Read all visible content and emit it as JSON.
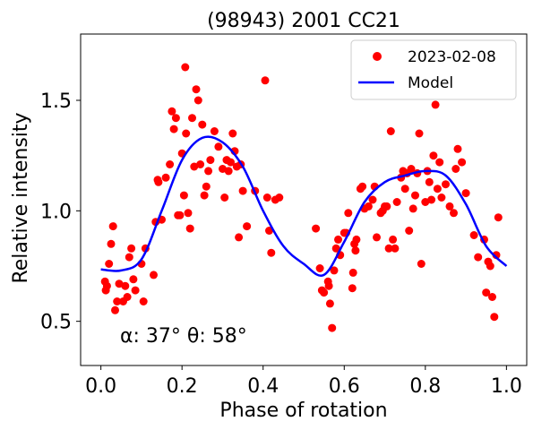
{
  "chart_data": {
    "type": "scatter",
    "title": "(98943) 2001 CC21",
    "xlabel": "Phase of rotation",
    "ylabel": "Relative intensity",
    "xlim": [
      -0.05,
      1.05
    ],
    "ylim": [
      0.3,
      1.8
    ],
    "xticks": [
      0.0,
      0.2,
      0.4,
      0.6,
      0.8,
      1.0
    ],
    "xtick_labels": [
      "0.0",
      "0.2",
      "0.4",
      "0.6",
      "0.8",
      "1.0"
    ],
    "yticks": [
      0.5,
      1.0,
      1.5
    ],
    "ytick_labels": [
      "0.5",
      "1.0",
      "1.5"
    ],
    "grid": false,
    "legend": {
      "placement": "top-right"
    },
    "annotation": "α: 37° θ: 58°",
    "series": [
      {
        "name": "2023-02-08",
        "kind": "scatter",
        "color": "#ff0000",
        "points": [
          [
            0.01,
            0.68
          ],
          [
            0.012,
            0.64
          ],
          [
            0.015,
            0.66
          ],
          [
            0.02,
            0.76
          ],
          [
            0.025,
            0.85
          ],
          [
            0.03,
            0.93
          ],
          [
            0.035,
            0.55
          ],
          [
            0.04,
            0.59
          ],
          [
            0.045,
            0.67
          ],
          [
            0.055,
            0.59
          ],
          [
            0.06,
            0.66
          ],
          [
            0.065,
            0.61
          ],
          [
            0.07,
            0.79
          ],
          [
            0.075,
            0.83
          ],
          [
            0.08,
            0.69
          ],
          [
            0.085,
            0.64
          ],
          [
            0.1,
            0.76
          ],
          [
            0.105,
            0.59
          ],
          [
            0.11,
            0.83
          ],
          [
            0.13,
            0.71
          ],
          [
            0.135,
            0.95
          ],
          [
            0.14,
            1.14
          ],
          [
            0.142,
            1.13
          ],
          [
            0.15,
            0.96
          ],
          [
            0.16,
            1.15
          ],
          [
            0.17,
            1.21
          ],
          [
            0.175,
            1.45
          ],
          [
            0.18,
            1.37
          ],
          [
            0.185,
            1.42
          ],
          [
            0.19,
            0.98
          ],
          [
            0.195,
            0.98
          ],
          [
            0.2,
            1.26
          ],
          [
            0.205,
            1.07
          ],
          [
            0.208,
            1.65
          ],
          [
            0.21,
            1.35
          ],
          [
            0.215,
            0.99
          ],
          [
            0.22,
            0.92
          ],
          [
            0.225,
            1.42
          ],
          [
            0.23,
            1.2
          ],
          [
            0.235,
            1.55
          ],
          [
            0.24,
            1.5
          ],
          [
            0.245,
            1.21
          ],
          [
            0.25,
            1.39
          ],
          [
            0.255,
            1.07
          ],
          [
            0.26,
            1.11
          ],
          [
            0.265,
            1.18
          ],
          [
            0.27,
            1.23
          ],
          [
            0.28,
            1.36
          ],
          [
            0.29,
            1.29
          ],
          [
            0.3,
            1.19
          ],
          [
            0.305,
            1.06
          ],
          [
            0.31,
            1.23
          ],
          [
            0.315,
            1.18
          ],
          [
            0.32,
            1.22
          ],
          [
            0.325,
            1.35
          ],
          [
            0.33,
            1.27
          ],
          [
            0.335,
            1.2
          ],
          [
            0.34,
            0.88
          ],
          [
            0.345,
            1.21
          ],
          [
            0.35,
            1.09
          ],
          [
            0.36,
            0.93
          ],
          [
            0.38,
            1.09
          ],
          [
            0.405,
            1.59
          ],
          [
            0.41,
            1.06
          ],
          [
            0.415,
            0.91
          ],
          [
            0.42,
            0.81
          ],
          [
            0.43,
            1.05
          ],
          [
            0.44,
            1.06
          ],
          [
            0.53,
            0.92
          ],
          [
            0.54,
            0.74
          ],
          [
            0.545,
            0.64
          ],
          [
            0.55,
            0.63
          ],
          [
            0.56,
            0.68
          ],
          [
            0.562,
            0.66
          ],
          [
            0.565,
            0.58
          ],
          [
            0.57,
            0.47
          ],
          [
            0.575,
            0.73
          ],
          [
            0.58,
            0.83
          ],
          [
            0.585,
            0.87
          ],
          [
            0.59,
            0.8
          ],
          [
            0.6,
            0.9
          ],
          [
            0.605,
            0.9
          ],
          [
            0.61,
            0.99
          ],
          [
            0.62,
            0.65
          ],
          [
            0.622,
            0.72
          ],
          [
            0.625,
            0.85
          ],
          [
            0.628,
            0.82
          ],
          [
            0.63,
            0.87
          ],
          [
            0.64,
            1.1
          ],
          [
            0.645,
            1.11
          ],
          [
            0.65,
            1.01
          ],
          [
            0.66,
            1.02
          ],
          [
            0.67,
            1.05
          ],
          [
            0.675,
            1.11
          ],
          [
            0.68,
            0.88
          ],
          [
            0.69,
            0.99
          ],
          [
            0.695,
            1.0
          ],
          [
            0.7,
            1.02
          ],
          [
            0.705,
            1.02
          ],
          [
            0.71,
            0.83
          ],
          [
            0.715,
            1.36
          ],
          [
            0.72,
            0.87
          ],
          [
            0.725,
            0.83
          ],
          [
            0.73,
            1.04
          ],
          [
            0.74,
            1.15
          ],
          [
            0.745,
            1.18
          ],
          [
            0.75,
            1.1
          ],
          [
            0.755,
            1.17
          ],
          [
            0.76,
            0.91
          ],
          [
            0.765,
            1.19
          ],
          [
            0.77,
            1.01
          ],
          [
            0.775,
            1.07
          ],
          [
            0.78,
            1.17
          ],
          [
            0.785,
            1.35
          ],
          [
            0.79,
            0.76
          ],
          [
            0.8,
            1.04
          ],
          [
            0.805,
            1.18
          ],
          [
            0.81,
            1.13
          ],
          [
            0.815,
            1.05
          ],
          [
            0.82,
            1.25
          ],
          [
            0.825,
            1.48
          ],
          [
            0.83,
            1.1
          ],
          [
            0.835,
            1.22
          ],
          [
            0.84,
            1.06
          ],
          [
            0.85,
            1.12
          ],
          [
            0.86,
            1.02
          ],
          [
            0.87,
            0.99
          ],
          [
            0.875,
            1.19
          ],
          [
            0.88,
            1.28
          ],
          [
            0.89,
            1.22
          ],
          [
            0.9,
            1.08
          ],
          [
            0.92,
            0.89
          ],
          [
            0.93,
            0.79
          ],
          [
            0.945,
            0.87
          ],
          [
            0.95,
            0.63
          ],
          [
            0.955,
            0.77
          ],
          [
            0.96,
            0.75
          ],
          [
            0.965,
            0.61
          ],
          [
            0.97,
            0.52
          ],
          [
            0.975,
            0.8
          ],
          [
            0.98,
            0.97
          ]
        ]
      },
      {
        "name": "Model",
        "kind": "line",
        "color": "#0000ff",
        "points": [
          [
            0.0,
            0.735
          ],
          [
            0.05,
            0.73
          ],
          [
            0.1,
            0.78
          ],
          [
            0.15,
            1.0
          ],
          [
            0.2,
            1.23
          ],
          [
            0.25,
            1.33
          ],
          [
            0.3,
            1.31
          ],
          [
            0.35,
            1.2
          ],
          [
            0.4,
            1.0
          ],
          [
            0.45,
            0.84
          ],
          [
            0.5,
            0.76
          ],
          [
            0.55,
            0.71
          ],
          [
            0.6,
            0.86
          ],
          [
            0.65,
            1.04
          ],
          [
            0.7,
            1.13
          ],
          [
            0.75,
            1.16
          ],
          [
            0.8,
            1.18
          ],
          [
            0.85,
            1.16
          ],
          [
            0.9,
            1.03
          ],
          [
            0.95,
            0.84
          ],
          [
            1.0,
            0.75
          ]
        ]
      }
    ]
  }
}
